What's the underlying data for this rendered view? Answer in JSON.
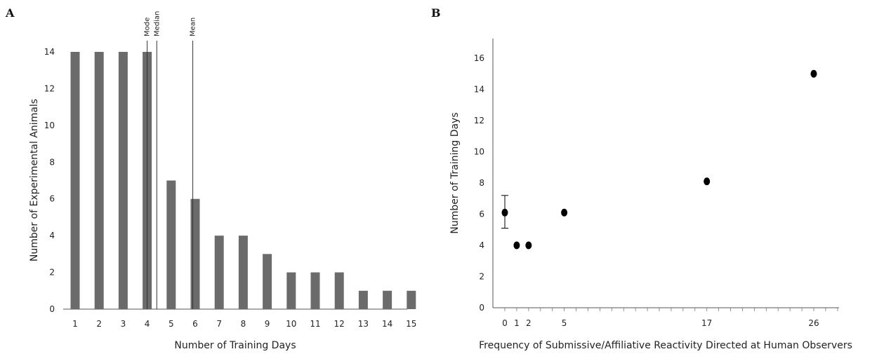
{
  "chart_data": [
    {
      "panel": "A",
      "type": "bar",
      "categories": [
        "1",
        "2",
        "3",
        "4",
        "5",
        "6",
        "7",
        "8",
        "9",
        "10",
        "11",
        "12",
        "13",
        "14",
        "15"
      ],
      "values": [
        14,
        14,
        14,
        14,
        7,
        6,
        4,
        4,
        3,
        2,
        2,
        2,
        1,
        1,
        1
      ],
      "xlabel": "Number of Training Days",
      "ylabel": "Number of Experimental Animals",
      "ylim": [
        0,
        14
      ],
      "yticks": [
        0,
        2,
        4,
        6,
        8,
        10,
        12,
        14
      ],
      "bar_color": "#6b6b6b",
      "reference_lines": [
        {
          "label": "Mode",
          "x": 4
        },
        {
          "label": "Median",
          "x": 4.4
        },
        {
          "label": "Mean",
          "x": 5.9
        }
      ]
    },
    {
      "panel": "B",
      "type": "scatter",
      "xlabel": "Frequency of Submissive/Affiliative Reactivity Directed at Human Observers",
      "ylabel": "Number of Training Days",
      "ylim": [
        0,
        16
      ],
      "yticks": [
        0,
        2,
        4,
        6,
        8,
        10,
        12,
        14,
        16
      ],
      "xticks": [
        0,
        1,
        2,
        5,
        17,
        26
      ],
      "xlim": [
        0,
        28
      ],
      "points": [
        {
          "x": 0,
          "y": 6.1,
          "error_low": 5.1,
          "error_high": 7.2
        },
        {
          "x": 1,
          "y": 4
        },
        {
          "x": 2,
          "y": 4
        },
        {
          "x": 5,
          "y": 6.1
        },
        {
          "x": 17,
          "y": 8.1
        },
        {
          "x": 26,
          "y": 15
        }
      ],
      "point_color": "#000000"
    }
  ]
}
